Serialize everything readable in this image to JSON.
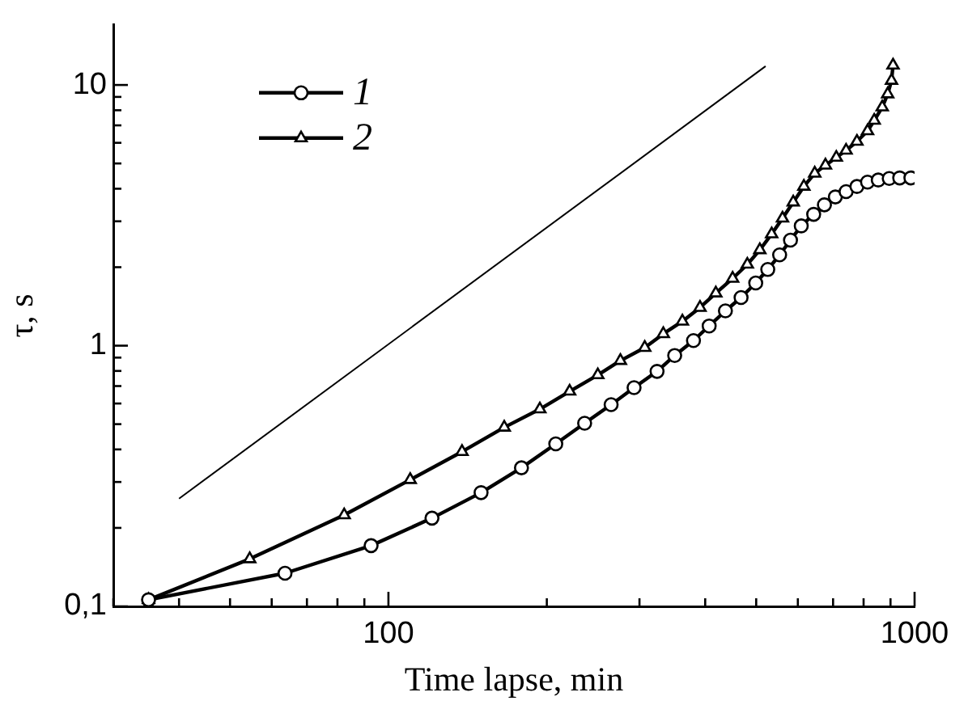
{
  "chart_data": {
    "type": "line",
    "xlabel": "Time lapse, min",
    "ylabel": "τ, s",
    "log": "xy",
    "legend": "top left",
    "grid": false,
    "xlim": [
      30,
      1000
    ],
    "ylim": [
      0.1,
      17
    ],
    "xticks": [
      {
        "value": 30,
        "label": null
      },
      {
        "value": 40,
        "label": null
      },
      {
        "value": 50,
        "label": null
      },
      {
        "value": 60,
        "label": null
      },
      {
        "value": 70,
        "label": null
      },
      {
        "value": 80,
        "label": null
      },
      {
        "value": 90,
        "label": null
      },
      100,
      {
        "value": 200,
        "label": null
      },
      {
        "value": 300,
        "label": null
      },
      {
        "value": 400,
        "label": null
      },
      {
        "value": 500,
        "label": null
      },
      {
        "value": 600,
        "label": null
      },
      {
        "value": 700,
        "label": null
      },
      {
        "value": 800,
        "label": null
      },
      {
        "value": 900,
        "label": null
      },
      1000
    ],
    "yticks": [
      {
        "value": 0.1,
        "label": "0,1"
      },
      {
        "value": 0.2,
        "label": null
      },
      {
        "value": 0.3,
        "label": null
      },
      {
        "value": 0.4,
        "label": null
      },
      {
        "value": 0.5,
        "label": null
      },
      {
        "value": 0.6,
        "label": null
      },
      {
        "value": 0.7,
        "label": null
      },
      {
        "value": 0.8,
        "label": null
      },
      {
        "value": 0.9,
        "label": null
      },
      1,
      {
        "value": 2,
        "label": null
      },
      {
        "value": 3,
        "label": null
      },
      {
        "value": 4,
        "label": null
      },
      {
        "value": 5,
        "label": null
      },
      {
        "value": 6,
        "label": null
      },
      {
        "value": 7,
        "label": null
      },
      {
        "value": 8,
        "label": null
      },
      {
        "value": 9,
        "label": null
      },
      10
    ],
    "series": [
      {
        "name": "1",
        "color": "#000000",
        "marker": "circle",
        "x": [
          35,
          63.6,
          92.7,
          121,
          150,
          179,
          208,
          236,
          265,
          293,
          324,
          350,
          380,
          407,
          437,
          468,
          499,
          526,
          554,
          581,
          609,
          643,
          674,
          707,
          741,
          777,
          814,
          853,
          895,
          937,
          984
        ],
        "values": [
          0.106,
          0.134,
          0.171,
          0.218,
          0.273,
          0.34,
          0.42,
          0.504,
          0.594,
          0.69,
          0.797,
          0.917,
          1.046,
          1.19,
          1.36,
          1.53,
          1.74,
          1.96,
          2.23,
          2.54,
          2.88,
          3.19,
          3.47,
          3.72,
          3.9,
          4.08,
          4.24,
          4.32,
          4.38,
          4.4,
          4.4
        ]
      },
      {
        "name": "2",
        "color": "#000000",
        "marker": "triangle",
        "x": [
          35,
          54.5,
          82.4,
          110,
          138,
          166,
          194,
          221,
          250,
          276,
          307,
          333,
          362,
          391,
          419,
          451,
          481,
          508,
          535,
          561,
          588,
          616,
          646,
          677,
          710,
          741,
          777,
          814,
          838,
          868,
          889,
          904,
          910
        ],
        "values": [
          0.106,
          0.152,
          0.224,
          0.306,
          0.392,
          0.486,
          0.571,
          0.668,
          0.772,
          0.876,
          0.983,
          1.11,
          1.24,
          1.4,
          1.59,
          1.81,
          2.05,
          2.33,
          2.68,
          3.08,
          3.55,
          4.08,
          4.58,
          4.92,
          5.27,
          5.61,
          6.07,
          6.66,
          7.31,
          8.22,
          9.23,
          10.4,
          11.9
        ]
      },
      {
        "color": "#000000",
        "marker": "none",
        "x": [
          40,
          521
        ],
        "values": [
          0.259,
          11.8
        ]
      }
    ]
  }
}
